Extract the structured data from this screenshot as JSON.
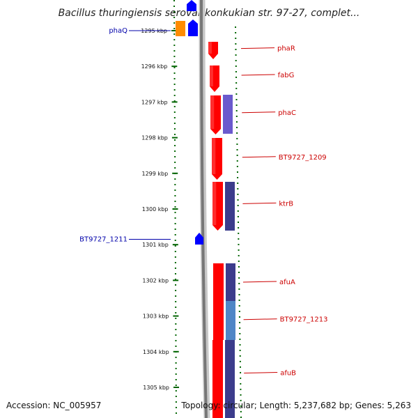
{
  "title": "Bacillus thuringiensis serovar konkukian str. 97-27, complet...",
  "footer": {
    "accession": "Accession: NC_005957",
    "topology": "Topology: circular; Length: 5,237,682 bp; Genes: 5,263"
  },
  "ticks": [
    "1295 kbp",
    "1296 kbp",
    "1297 kbp",
    "1298 kbp",
    "1299 kbp",
    "1300 kbp",
    "1301 kbp",
    "1302 kbp",
    "1303 kbp",
    "1304 kbp",
    "1305 kbp"
  ],
  "genes_left": [
    {
      "name": "phaQ",
      "kb": 1295
    },
    {
      "name": "BT9727_1211",
      "kb": 1300.85
    }
  ],
  "genes_right": [
    {
      "name": "phaR",
      "kb": 1295.5
    },
    {
      "name": "fabG",
      "kb": 1296.25
    },
    {
      "name": "phaC",
      "kb": 1297.3
    },
    {
      "name": "BT9727_1209",
      "kb": 1298.55
    },
    {
      "name": "ktrB",
      "kb": 1299.85
    },
    {
      "name": "afuA",
      "kb": 1302.05
    },
    {
      "name": "BT9727_1213",
      "kb": 1303.1
    },
    {
      "name": "afuB",
      "kb": 1304.6
    }
  ],
  "colors": {
    "forward_gene": "#ff0000",
    "reverse_gene": "#0000ff",
    "left_label": "#0000aa",
    "right_label": "#cc0000",
    "blast_purple": "#6a5acd",
    "blast_dark": "#3c3c8c",
    "blast_light": "#4f86c6",
    "orange": "#ff8c00",
    "backbone": "#808080",
    "tick": "#006400"
  }
}
